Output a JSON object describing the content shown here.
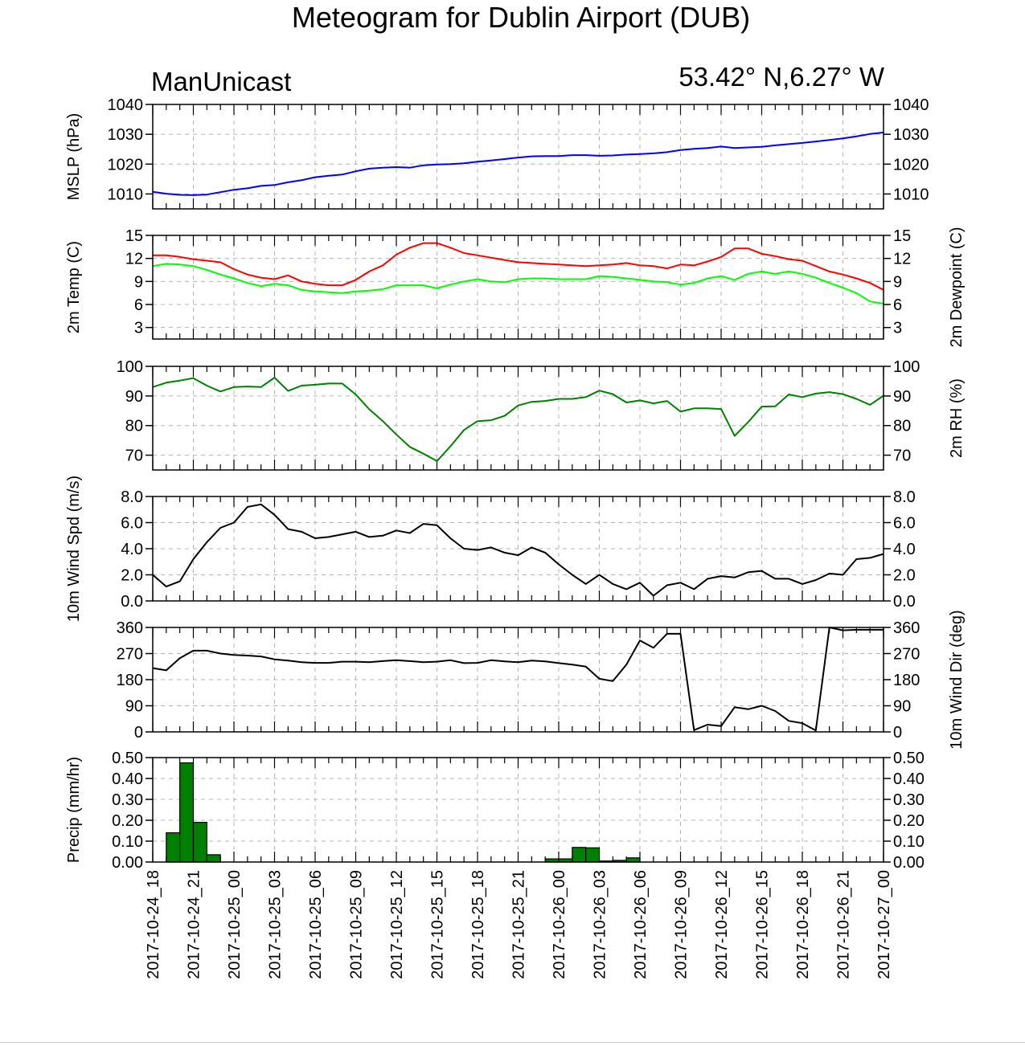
{
  "title": "Meteogram for Dublin Airport (DUB)",
  "model": "ManUnicast",
  "location": "53.42° N,6.27° W",
  "time_labels": [
    "2017-10-24_18",
    "2017-10-24_21",
    "2017-10-25_00",
    "2017-10-25_03",
    "2017-10-25_06",
    "2017-10-25_09",
    "2017-10-25_12",
    "2017-10-25_15",
    "2017-10-25_18",
    "2017-10-25_21",
    "2017-10-26_00",
    "2017-10-26_03",
    "2017-10-26_06",
    "2017-10-26_09",
    "2017-10-26_12",
    "2017-10-26_15",
    "2017-10-26_18",
    "2017-10-26_21",
    "2017-10-27_00"
  ],
  "colors": {
    "mslp": "#0000ff",
    "temp": "#ff0000",
    "dewpoint": "#00ff00",
    "rh": "#008000",
    "wind": "#000000",
    "precip_fill": "#008000"
  },
  "chart_data": [
    {
      "type": "line",
      "ylabel": "MSLP (hPa)",
      "ylim": [
        1005,
        1040
      ],
      "yticks": [
        1010,
        1020,
        1030,
        1040
      ],
      "ytick_labels": [
        "1010",
        "1020",
        "1030",
        "1040"
      ],
      "xlim_hours": [
        0,
        54
      ],
      "grid": true,
      "series": [
        {
          "color": "#0000ff",
          "hours": [
            0,
            1,
            2,
            3,
            4,
            5,
            6,
            7,
            8,
            9,
            10,
            11,
            12,
            13,
            14,
            15,
            16,
            17,
            18,
            19,
            20,
            21,
            22,
            23,
            24,
            25,
            26,
            27,
            28,
            29,
            30,
            31,
            32,
            33,
            34,
            35,
            36,
            37,
            38,
            39,
            40,
            41,
            42,
            43,
            44,
            45,
            46,
            47,
            48,
            49,
            50,
            51,
            52,
            53,
            54
          ],
          "values": [
            1010.7,
            1010.1,
            1009.7,
            1009.6,
            1009.8,
            1010.6,
            1011.4,
            1011.9,
            1012.7,
            1013.0,
            1013.9,
            1014.6,
            1015.6,
            1016.1,
            1016.5,
            1017.6,
            1018.5,
            1018.8,
            1019.0,
            1018.8,
            1019.6,
            1019.9,
            1020.0,
            1020.3,
            1020.8,
            1021.2,
            1021.7,
            1022.2,
            1022.6,
            1022.7,
            1022.7,
            1023.0,
            1023.0,
            1022.8,
            1022.9,
            1023.2,
            1023.4,
            1023.6,
            1024.0,
            1024.7,
            1025.1,
            1025.4,
            1025.9,
            1025.4,
            1025.6,
            1025.8,
            1026.3,
            1026.7,
            1027.1,
            1027.6,
            1028.1,
            1028.6,
            1029.3,
            1030.1,
            1030.6
          ]
        }
      ]
    },
    {
      "type": "line",
      "ylabel": "2m Temp (C)",
      "ylabel_right": "2m Dewpoint (C)",
      "ylim": [
        1.5,
        15
      ],
      "yticks": [
        3,
        6,
        9,
        12,
        15
      ],
      "ytick_labels": [
        "3",
        "6",
        "9",
        "12",
        "15"
      ],
      "xlim_hours": [
        0,
        54
      ],
      "grid": true,
      "series": [
        {
          "color": "#ff0000",
          "hours": [
            0,
            1,
            2,
            3,
            4,
            5,
            6,
            7,
            8,
            9,
            10,
            11,
            12,
            13,
            14,
            15,
            16,
            17,
            18,
            19,
            20,
            21,
            22,
            23,
            24,
            25,
            26,
            27,
            28,
            29,
            30,
            31,
            32,
            33,
            34,
            35,
            36,
            37,
            38,
            39,
            40,
            41,
            42,
            43,
            44,
            45,
            46,
            47,
            48,
            49,
            50,
            51,
            52,
            53,
            54
          ],
          "values": [
            12.4,
            12.4,
            12.2,
            11.9,
            11.7,
            11.5,
            10.6,
            9.9,
            9.5,
            9.3,
            9.8,
            9.0,
            8.7,
            8.5,
            8.5,
            9.2,
            10.3,
            11.1,
            12.5,
            13.4,
            14.0,
            14.0,
            13.4,
            12.7,
            12.4,
            12.1,
            11.8,
            11.5,
            11.4,
            11.3,
            11.2,
            11.1,
            11.0,
            11.1,
            11.2,
            11.4,
            11.1,
            11.0,
            10.7,
            11.2,
            11.1,
            11.6,
            12.2,
            13.3,
            13.3,
            12.6,
            12.3,
            11.9,
            11.7,
            11.0,
            10.3,
            9.9,
            9.4,
            8.8,
            7.9
          ]
        },
        {
          "color": "#00ff00",
          "hours": [
            0,
            1,
            2,
            3,
            4,
            5,
            6,
            7,
            8,
            9,
            10,
            11,
            12,
            13,
            14,
            15,
            16,
            17,
            18,
            19,
            20,
            21,
            22,
            23,
            24,
            25,
            26,
            27,
            28,
            29,
            30,
            31,
            32,
            33,
            34,
            35,
            36,
            37,
            38,
            39,
            40,
            41,
            42,
            43,
            44,
            45,
            46,
            47,
            48,
            49,
            50,
            51,
            52,
            53,
            54
          ],
          "values": [
            11.0,
            11.3,
            11.2,
            11.0,
            10.5,
            9.9,
            9.4,
            8.8,
            8.4,
            8.7,
            8.5,
            7.9,
            7.7,
            7.6,
            7.5,
            7.7,
            7.8,
            8.0,
            8.5,
            8.5,
            8.5,
            8.1,
            8.6,
            9.0,
            9.3,
            9.0,
            8.9,
            9.3,
            9.4,
            9.4,
            9.3,
            9.3,
            9.3,
            9.7,
            9.6,
            9.4,
            9.2,
            9.0,
            8.9,
            8.6,
            8.8,
            9.4,
            9.7,
            9.2,
            10.0,
            10.3,
            10.0,
            10.3,
            10.0,
            9.5,
            8.8,
            8.2,
            7.5,
            6.4,
            6.1
          ]
        }
      ]
    },
    {
      "type": "line",
      "ylabel_right": "2m RH (%)",
      "ylim": [
        65,
        100
      ],
      "yticks": [
        70,
        80,
        90,
        100
      ],
      "ytick_labels": [
        "70",
        "80",
        "90",
        "100"
      ],
      "xlim_hours": [
        0,
        54
      ],
      "grid": true,
      "series": [
        {
          "color": "#008000",
          "hours": [
            0,
            1,
            2,
            3,
            4,
            5,
            6,
            7,
            8,
            9,
            10,
            11,
            12,
            13,
            14,
            15,
            16,
            17,
            18,
            19,
            20,
            21,
            22,
            23,
            24,
            25,
            26,
            27,
            28,
            29,
            30,
            31,
            32,
            33,
            34,
            35,
            36,
            37,
            38,
            39,
            40,
            41,
            42,
            43,
            44,
            45,
            46,
            47,
            48,
            49,
            50,
            51,
            52,
            53,
            54
          ],
          "values": [
            93,
            94.5,
            95.2,
            96,
            93.5,
            91.5,
            93,
            93.2,
            93,
            96.2,
            91.7,
            93.5,
            93.8,
            94.2,
            94.2,
            90.5,
            85.5,
            81.5,
            77,
            72.8,
            70.5,
            68,
            73,
            78.5,
            81.5,
            81.8,
            83.3,
            86.8,
            88,
            88.3,
            89,
            89,
            89.6,
            91.8,
            90.6,
            87.8,
            88.5,
            87.5,
            88.3,
            84.7,
            85.8,
            85.8,
            85.6,
            76.5,
            81.2,
            86.4,
            86.5,
            90.5,
            89.6,
            90.8,
            91.3,
            90.6,
            89,
            87,
            90.1
          ]
        }
      ]
    },
    {
      "type": "line",
      "ylabel": "10m Wind Spd (m/s)",
      "ylim": [
        0,
        8
      ],
      "yticks": [
        0,
        2,
        4,
        6,
        8
      ],
      "ytick_labels": [
        "0.0",
        "2.0",
        "4.0",
        "6.0",
        "8.0"
      ],
      "xlim_hours": [
        0,
        54
      ],
      "grid": true,
      "series": [
        {
          "color": "#000000",
          "hours": [
            0,
            1,
            2,
            3,
            4,
            5,
            6,
            7,
            8,
            9,
            10,
            11,
            12,
            13,
            14,
            15,
            16,
            17,
            18,
            19,
            20,
            21,
            22,
            23,
            24,
            25,
            26,
            27,
            28,
            29,
            30,
            31,
            32,
            33,
            34,
            35,
            36,
            37,
            38,
            39,
            40,
            41,
            42,
            43,
            44,
            45,
            46,
            47,
            48,
            49,
            50,
            51,
            52,
            53,
            54
          ],
          "values": [
            2.0,
            1.1,
            1.5,
            3.2,
            4.5,
            5.6,
            6.0,
            7.2,
            7.4,
            6.6,
            5.5,
            5.3,
            4.8,
            4.9,
            5.1,
            5.3,
            4.9,
            5.0,
            5.4,
            5.2,
            5.9,
            5.8,
            4.8,
            4.0,
            3.9,
            4.1,
            3.7,
            3.5,
            4.1,
            3.7,
            2.8,
            2.0,
            1.3,
            2.0,
            1.3,
            0.9,
            1.4,
            0.4,
            1.2,
            1.4,
            0.9,
            1.7,
            1.9,
            1.8,
            2.2,
            2.3,
            1.7,
            1.7,
            1.3,
            1.6,
            2.1,
            2.0,
            3.2,
            3.3,
            3.6
          ]
        }
      ]
    },
    {
      "type": "line",
      "ylabel_right": "10m Wind Dir (deg)",
      "ylim": [
        0,
        360
      ],
      "yticks": [
        0,
        90,
        180,
        270,
        360
      ],
      "ytick_labels": [
        "0",
        "90",
        "180",
        "270",
        "360"
      ],
      "xlim_hours": [
        0,
        54
      ],
      "grid": true,
      "series": [
        {
          "color": "#000000",
          "hours": [
            0,
            1,
            2,
            3,
            4,
            5,
            6,
            7,
            8,
            9,
            10,
            11,
            12,
            13,
            14,
            15,
            16,
            17,
            18,
            19,
            20,
            21,
            22,
            23,
            24,
            25,
            26,
            27,
            28,
            29,
            30,
            31,
            32,
            33,
            34,
            35,
            36,
            37,
            38,
            39,
            40,
            41,
            42,
            43,
            44,
            45,
            46,
            47,
            48,
            49,
            50,
            51,
            52,
            53,
            54
          ],
          "values": [
            220,
            212,
            254,
            280,
            280,
            270,
            265,
            263,
            260,
            250,
            246,
            240,
            238,
            238,
            242,
            242,
            240,
            244,
            247,
            244,
            240,
            242,
            247,
            237,
            238,
            247,
            243,
            240,
            246,
            243,
            237,
            232,
            225,
            183,
            175,
            232,
            315,
            290,
            338,
            338,
            6,
            25,
            20,
            85,
            78,
            90,
            72,
            38,
            30,
            5,
            360,
            350,
            352,
            352,
            352
          ]
        }
      ]
    },
    {
      "type": "bar",
      "ylabel": "Precip (mm/hr)",
      "ylim": [
        0,
        0.5
      ],
      "yticks": [
        0,
        0.1,
        0.2,
        0.3,
        0.4,
        0.5
      ],
      "ytick_labels": [
        "0.00",
        "0.10",
        "0.20",
        "0.30",
        "0.40",
        "0.50"
      ],
      "xlim_hours": [
        0,
        54
      ],
      "grid": true,
      "bars": [
        {
          "hour": 1.5,
          "value": 0.14
        },
        {
          "hour": 2.5,
          "value": 0.475
        },
        {
          "hour": 3.5,
          "value": 0.19
        },
        {
          "hour": 4.5,
          "value": 0.035
        },
        {
          "hour": 29.5,
          "value": 0.015
        },
        {
          "hour": 30.5,
          "value": 0.015
        },
        {
          "hour": 31.5,
          "value": 0.07
        },
        {
          "hour": 32.5,
          "value": 0.068
        },
        {
          "hour": 33.5,
          "value": 0.005
        },
        {
          "hour": 34.5,
          "value": 0.008
        },
        {
          "hour": 35.5,
          "value": 0.02
        }
      ]
    }
  ]
}
